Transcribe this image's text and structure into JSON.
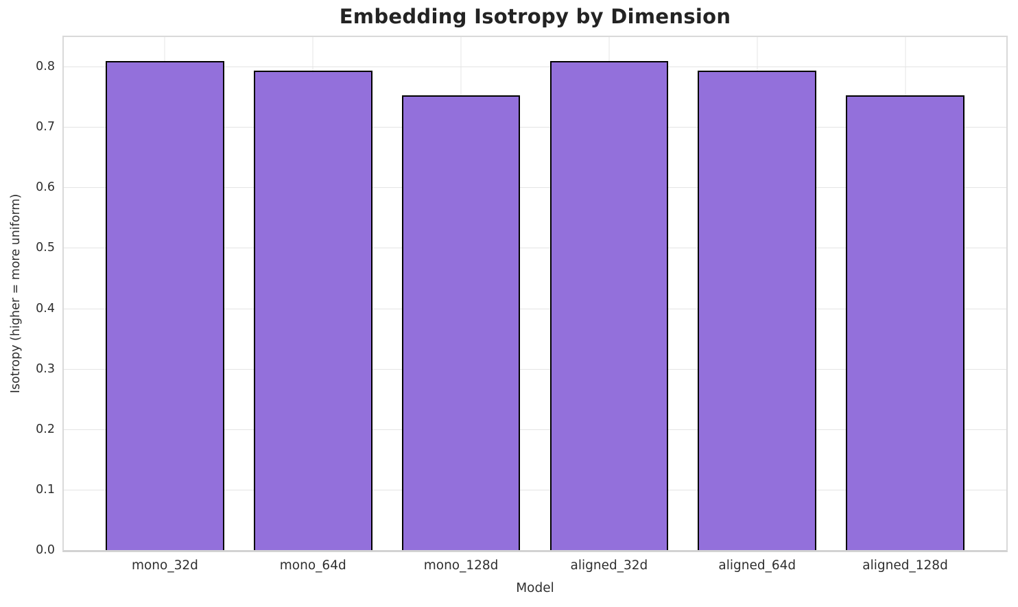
{
  "chart_data": {
    "type": "bar",
    "title": "Embedding Isotropy by Dimension",
    "xlabel": "Model",
    "ylabel": "Isotropy (higher = more uniform)",
    "categories": [
      "mono_32d",
      "mono_64d",
      "mono_128d",
      "aligned_32d",
      "aligned_64d",
      "aligned_128d"
    ],
    "values": [
      0.809,
      0.793,
      0.753,
      0.809,
      0.793,
      0.753
    ],
    "yticks": [
      0.0,
      0.1,
      0.2,
      0.3,
      0.4,
      0.5,
      0.6,
      0.7,
      0.8
    ],
    "ylim": [
      0,
      0.849
    ],
    "grid": true,
    "legend": null,
    "bar_color": "#9370DB",
    "bar_edge_color": "#000000",
    "grid_color": "#e4e4e4"
  }
}
